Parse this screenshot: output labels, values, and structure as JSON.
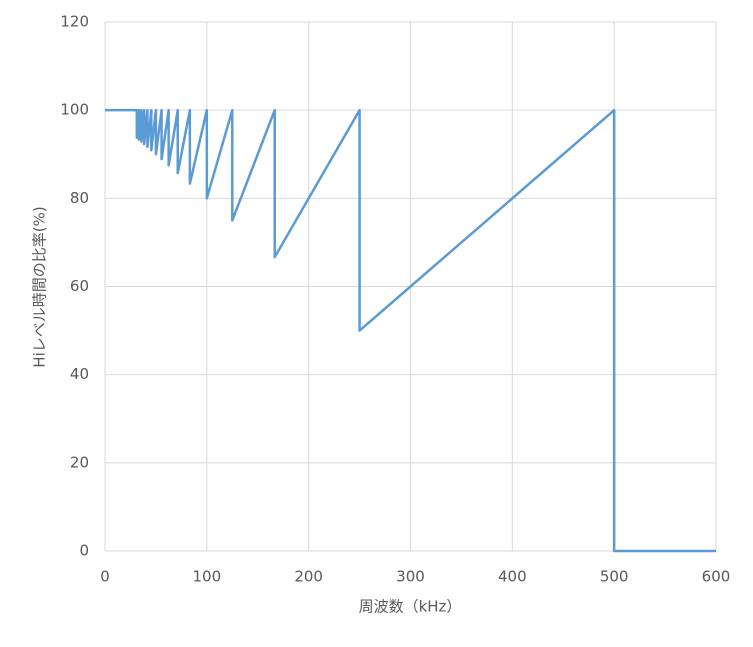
{
  "chart_data": {
    "type": "line",
    "x_label": "周波数（kHz）",
    "y_label": "Hiレベル時間の比率(%)",
    "xlim": [
      0,
      600
    ],
    "xticks": [
      0,
      100,
      200,
      300,
      400,
      500,
      600
    ],
    "ylim": [
      0,
      120
    ],
    "yticks": [
      0,
      20,
      40,
      60,
      80,
      100,
      120
    ],
    "grid": true,
    "series": [
      {
        "color": "#5b9bd5",
        "x": [
          0,
          31.25,
          31.25,
          33.33,
          33.33,
          35.71,
          35.71,
          38.46,
          38.46,
          41.67,
          41.67,
          45.45,
          45.45,
          50,
          50,
          55.56,
          55.56,
          62.5,
          62.5,
          71.43,
          71.43,
          83.33,
          83.33,
          100,
          100,
          125,
          125,
          166.67,
          166.67,
          250,
          250,
          500,
          500,
          600
        ],
        "values": [
          100,
          100,
          93.75,
          100,
          93.33,
          100,
          92.86,
          100,
          92.31,
          100,
          91.67,
          100,
          90.91,
          100,
          90,
          100,
          88.89,
          100,
          87.5,
          100,
          85.71,
          100,
          83.33,
          100,
          80,
          100,
          75,
          100,
          66.67,
          100,
          50,
          100,
          0,
          0
        ]
      }
    ]
  }
}
